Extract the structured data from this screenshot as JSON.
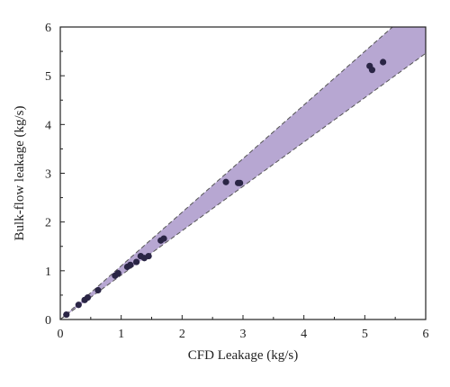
{
  "chart_data": {
    "type": "scatter",
    "title": "",
    "xlabel": "CFD Leakage (kg/s)",
    "ylabel": "Bulk-flow leakage (kg/s)",
    "xlim": [
      0,
      6
    ],
    "ylim": [
      0,
      6
    ],
    "xticks": [
      "0",
      "1",
      "2",
      "3",
      "4",
      "5",
      "6"
    ],
    "yticks": [
      "0",
      "1",
      "2",
      "3",
      "4",
      "5",
      "6"
    ],
    "grid": false,
    "band": {
      "lower_slope": 0.91,
      "upper_slope": 1.1,
      "fill_color": "#b7a7d2",
      "edge_style": "dashed"
    },
    "point_color": "#2a2545",
    "series": [
      {
        "points": [
          [
            0.1,
            0.1
          ],
          [
            0.3,
            0.3
          ],
          [
            0.4,
            0.4
          ],
          [
            0.45,
            0.45
          ],
          [
            0.62,
            0.6
          ],
          [
            0.9,
            0.9
          ],
          [
            0.95,
            0.95
          ],
          [
            1.1,
            1.08
          ],
          [
            1.15,
            1.12
          ],
          [
            1.25,
            1.18
          ],
          [
            1.32,
            1.3
          ],
          [
            1.38,
            1.26
          ],
          [
            1.45,
            1.3
          ],
          [
            1.65,
            1.62
          ],
          [
            1.7,
            1.66
          ],
          [
            2.72,
            2.82
          ],
          [
            2.92,
            2.8
          ],
          [
            2.95,
            2.8
          ],
          [
            5.08,
            5.2
          ],
          [
            5.12,
            5.12
          ],
          [
            5.3,
            5.28
          ]
        ]
      }
    ]
  }
}
